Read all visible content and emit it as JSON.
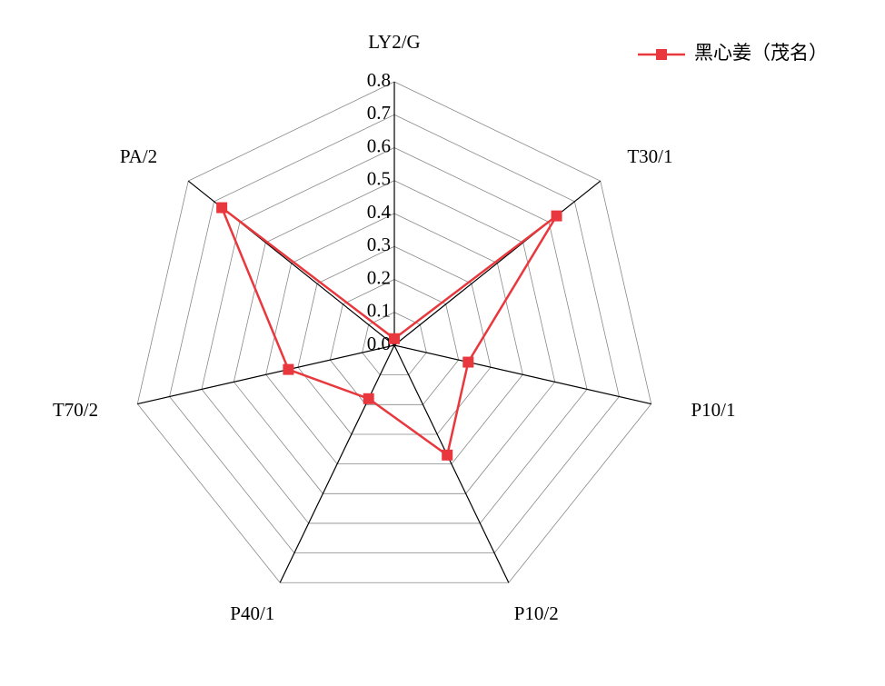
{
  "chart_data": {
    "type": "radar",
    "categories": [
      "LY2/G",
      "T30/1",
      "P10/1",
      "P10/2",
      "P40/1",
      "T70/2",
      "PA/2"
    ],
    "series": [
      {
        "name": "黑心姜（茂名）",
        "color": "#e8383d",
        "values": [
          0.02,
          0.63,
          0.23,
          0.37,
          0.18,
          0.33,
          0.67
        ]
      }
    ],
    "rlim": [
      0,
      0.8
    ],
    "rticks": [
      {
        "value": 0,
        "label": "0.0"
      },
      0.1,
      0.2,
      0.3,
      0.4,
      0.5,
      0.6,
      0.7,
      0.8
    ],
    "grid": true,
    "legend": "upper right"
  }
}
